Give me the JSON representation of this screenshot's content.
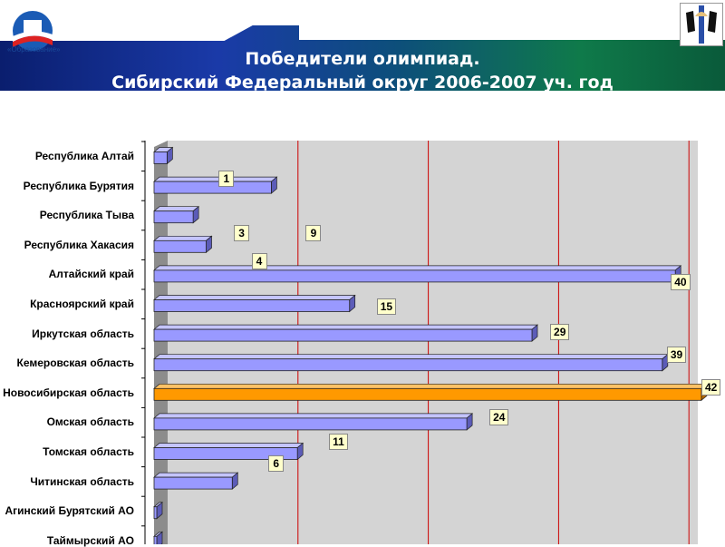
{
  "header": {
    "title_line1": "Победители олимпиад.",
    "title_line2": "Сибирский Федеральный округ 2006-2007 уч. год",
    "logo_text": "«Образование»",
    "logo_caption": "Приоритетные национальные проекты"
  },
  "chart_data": {
    "type": "bar",
    "orientation": "horizontal",
    "title": "Победители олимпиад. Сибирский Федеральный округ 2006-2007 уч. год",
    "categories": [
      "Республика Алтай",
      "Республика Бурятия",
      "Республика Тыва",
      "Республика Хакасия",
      "Алтайский край",
      "Красноярский край",
      "Иркутская область",
      "Кемеровская область",
      "Новосибирская область",
      "Омская область",
      "Томская область",
      "Читинская область",
      "Агинский Бурятский АО",
      "Таймырский АО"
    ],
    "values": [
      1,
      9,
      3,
      4,
      40,
      15,
      29,
      39,
      42,
      24,
      11,
      6,
      0,
      0
    ],
    "data_labels": [
      "1",
      "9",
      "3",
      "4",
      "40",
      "15",
      "29",
      "39",
      "42",
      "24",
      "11",
      "6",
      "",
      ""
    ],
    "highlight_index": 8,
    "xlim": [
      0,
      41
    ],
    "gridline_step": 10,
    "colors": {
      "bar": "#9999ff",
      "highlight": "#ff9900",
      "grid": "#cc0000",
      "wall": "#d4d4d4"
    }
  }
}
